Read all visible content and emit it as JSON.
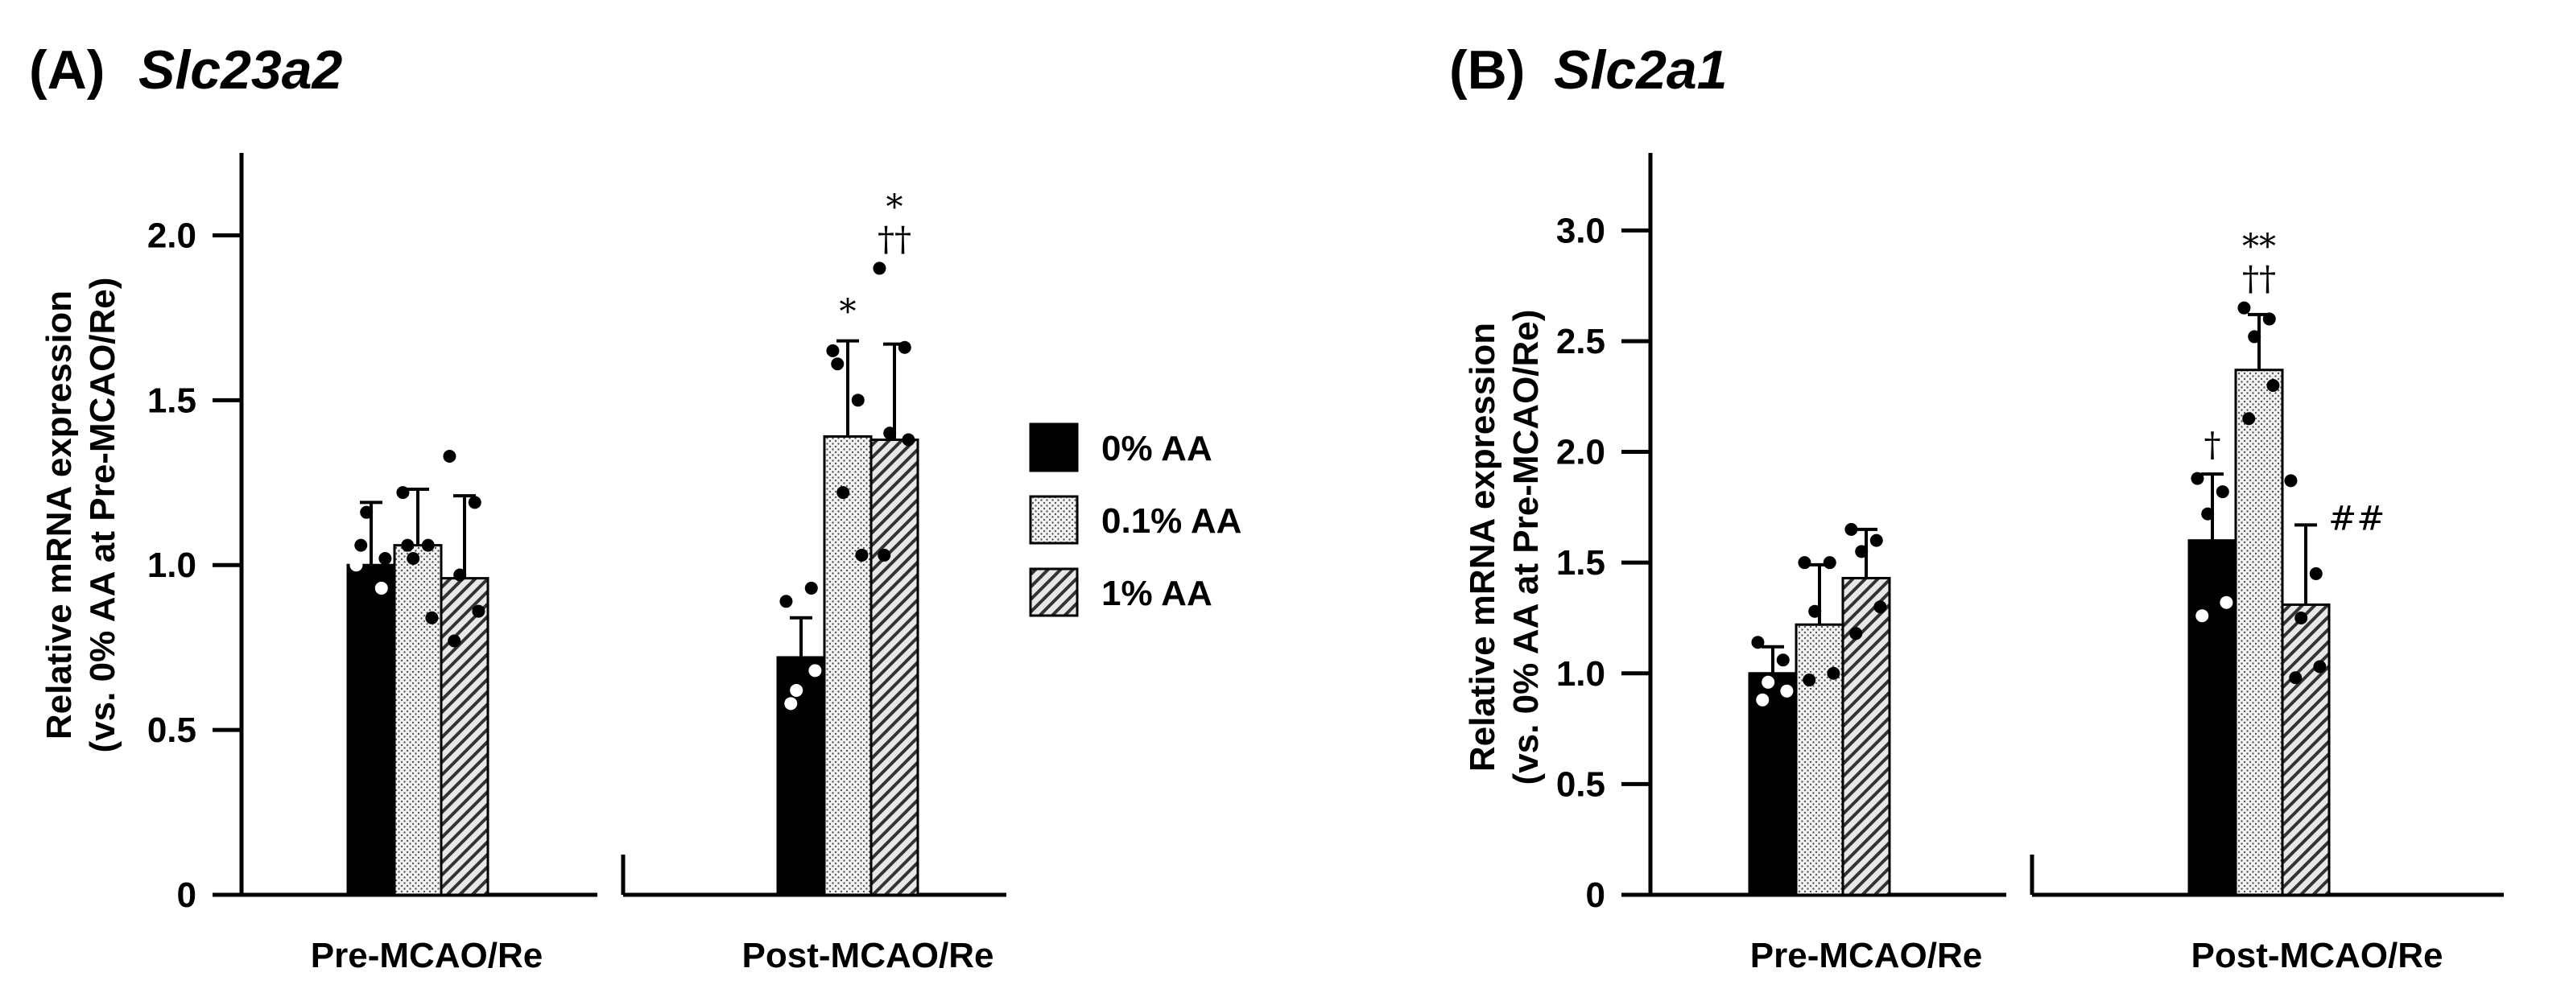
{
  "legend": [
    {
      "label": "0% AA",
      "pattern": "solid"
    },
    {
      "label": "0.1% AA",
      "pattern": "dots"
    },
    {
      "label": "1% AA",
      "pattern": "hatch"
    }
  ],
  "chart_data": [
    {
      "type": "bar",
      "panel_label": "(A)",
      "title": "Slc23a2",
      "ylabel": [
        "Relative mRNA expression",
        "(vs. 0% AA at Pre-MCAO/Re)"
      ],
      "xlabel": "",
      "ylim": [
        0,
        2.25
      ],
      "yticks": [
        0,
        0.5,
        1.0,
        1.5,
        2.0
      ],
      "ytick_labels": [
        "0",
        "0.5",
        "1.0",
        "1.5",
        "2.0"
      ],
      "categories": [
        "Pre-MCAO/Re",
        "Post-MCAO/Re"
      ],
      "series": [
        {
          "name": "0% AA",
          "values": [
            1.0,
            0.72
          ],
          "errors": [
            0.19,
            0.12
          ],
          "points": [
            [
              1.0,
              0.93,
              1.16,
              1.02,
              1.06
            ],
            [
              0.89,
              0.93,
              0.62,
              0.68,
              0.58
            ]
          ],
          "annotations": [
            "",
            ""
          ]
        },
        {
          "name": "0.1% AA",
          "values": [
            1.06,
            1.39
          ],
          "errors": [
            0.17,
            0.29
          ],
          "points": [
            [
              1.22,
              1.06,
              1.02,
              0.84,
              1.06
            ],
            [
              1.65,
              1.5,
              1.22,
              1.03,
              1.61
            ]
          ],
          "annotations": [
            "",
            "*"
          ]
        },
        {
          "name": "1% AA",
          "values": [
            0.96,
            1.38
          ],
          "errors": [
            0.25,
            0.29
          ],
          "points": [
            [
              1.33,
              1.19,
              0.97,
              0.86,
              0.77
            ],
            [
              1.9,
              1.66,
              1.4,
              1.38,
              1.03
            ]
          ],
          "annotations": [
            "",
            "*\n††"
          ]
        }
      ]
    },
    {
      "type": "bar",
      "panel_label": "(B)",
      "title": "Slc2a1",
      "ylabel": [
        "Relative mRNA expression",
        "(vs. 0% AA at Pre-MCAO/Re)"
      ],
      "xlabel": "",
      "ylim": [
        0,
        3.35
      ],
      "yticks": [
        0,
        0.5,
        1.0,
        1.5,
        2.0,
        2.5,
        3.0
      ],
      "ytick_labels": [
        "0",
        "0.5",
        "1.0",
        "1.5",
        "2.0",
        "2.5",
        "3.0"
      ],
      "categories": [
        "Pre-MCAO/Re",
        "Post-MCAO/Re"
      ],
      "series": [
        {
          "name": "0% AA",
          "values": [
            1.0,
            1.6
          ],
          "errors": [
            0.12,
            0.3
          ],
          "points": [
            [
              1.14,
              1.06,
              0.96,
              0.92,
              0.88
            ],
            [
              1.88,
              1.82,
              1.72,
              1.32,
              1.26
            ]
          ],
          "annotations": [
            "",
            "†"
          ]
        },
        {
          "name": "0.1% AA",
          "values": [
            1.22,
            2.37
          ],
          "errors": [
            0.27,
            0.25
          ],
          "points": [
            [
              1.5,
              1.5,
              1.28,
              1.0,
              0.97
            ],
            [
              2.65,
              2.6,
              2.52,
              2.3,
              2.15
            ]
          ],
          "annotations": [
            "",
            "**\n††"
          ]
        },
        {
          "name": "1% AA",
          "values": [
            1.43,
            1.31
          ],
          "errors": [
            0.22,
            0.36
          ],
          "points": [
            [
              1.65,
              1.6,
              1.55,
              1.3,
              1.18
            ],
            [
              1.87,
              1.45,
              1.25,
              1.03,
              0.98
            ]
          ],
          "annotations": [
            "",
            "##"
          ]
        }
      ]
    }
  ]
}
